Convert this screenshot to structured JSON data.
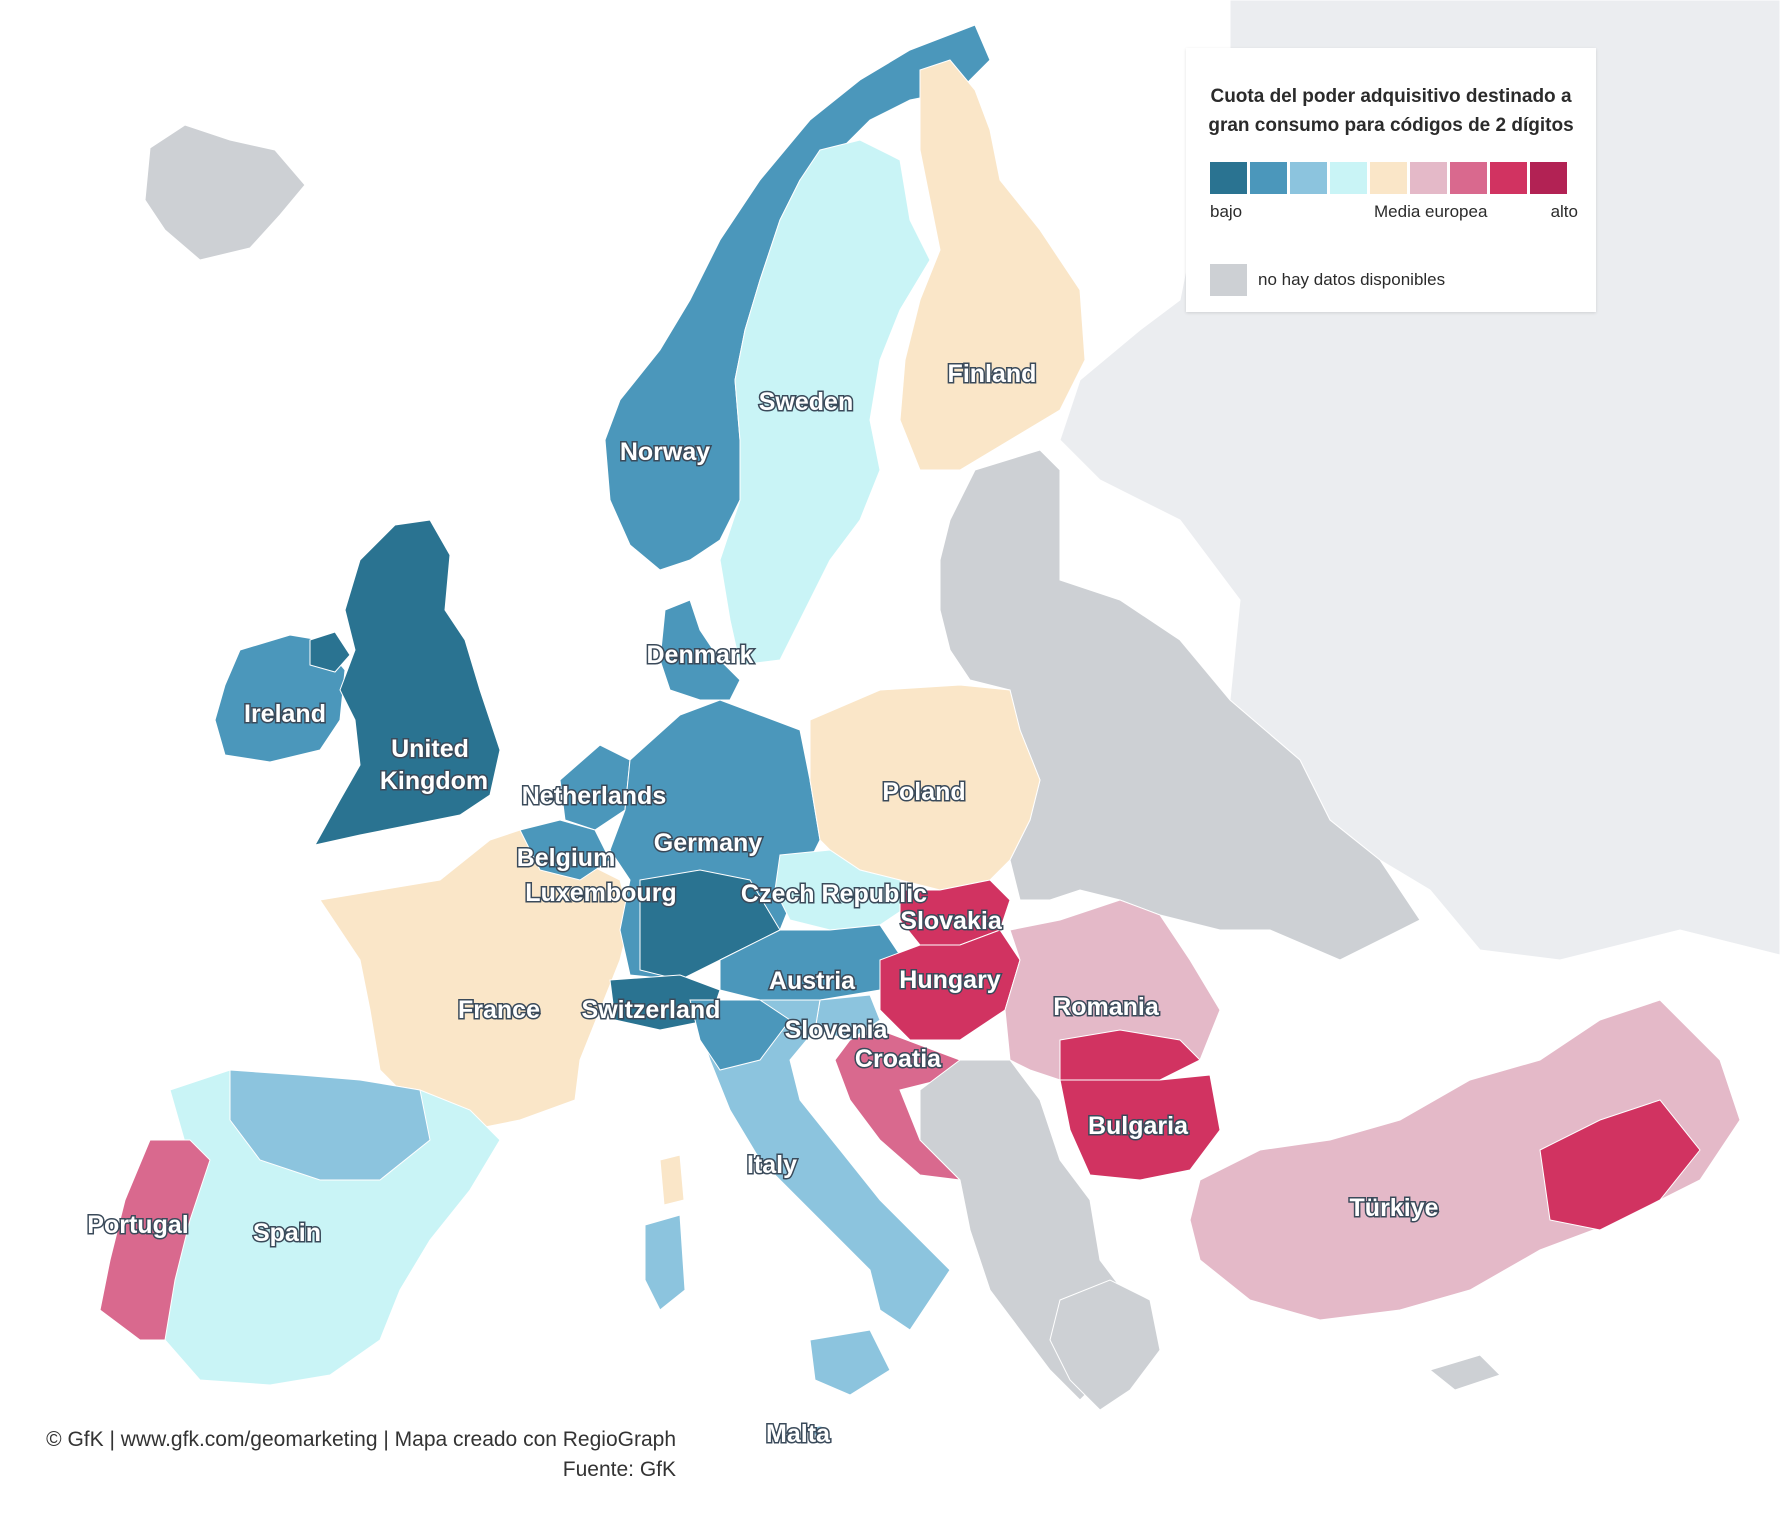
{
  "legend": {
    "title_line1": "Cuota del poder adquisitivo destinado a",
    "title_line2": "gran consumo para códigos de 2 dígitos",
    "scale_colors": [
      "#2a7391",
      "#4b97bb",
      "#8cc4de",
      "#c9f4f6",
      "#fae6c8",
      "#e4b9c8",
      "#d9698e",
      "#d13361",
      "#b22254"
    ],
    "label_low": "bajo",
    "label_mid": "Media europea",
    "label_high": "alto",
    "no_data_label": "no hay datos disponibles",
    "no_data_color": "#cdd0d4"
  },
  "credits": {
    "line1": "© GfK | www.gfk.com/geomarketing | Mapa creado con RegioGraph",
    "line2": "Fuente: GfK"
  },
  "map": {
    "water_color": "#ffffff",
    "outside_color": "#ebedf0",
    "countries": [
      {
        "name": "Norway",
        "label": "Norway",
        "class_index": 1
      },
      {
        "name": "Sweden",
        "label": "Sweden",
        "class_index": 3
      },
      {
        "name": "Finland",
        "label": "Finland",
        "class_index": 4
      },
      {
        "name": "Denmark",
        "label": "Denmark",
        "class_index": 1
      },
      {
        "name": "Ireland",
        "label": "Ireland",
        "class_index": 1
      },
      {
        "name": "United Kingdom",
        "label_lines": [
          "United",
          "Kingdom"
        ],
        "class_index": 0
      },
      {
        "name": "Netherlands",
        "label": "Netherlands",
        "class_index": 1
      },
      {
        "name": "Belgium",
        "label": "Belgium",
        "class_index": 1
      },
      {
        "name": "Luxembourg",
        "label": "Luxembourg",
        "class_index": 1
      },
      {
        "name": "Germany",
        "label": "Germany",
        "class_index": 1
      },
      {
        "name": "Poland",
        "label": "Poland",
        "class_index": 4
      },
      {
        "name": "Czech Republic",
        "label": "Czech Republic",
        "class_index": 3
      },
      {
        "name": "Slovakia",
        "label": "Slovakia",
        "class_index": 7
      },
      {
        "name": "Austria",
        "label": "Austria",
        "class_index": 1
      },
      {
        "name": "Hungary",
        "label": "Hungary",
        "class_index": 7
      },
      {
        "name": "Romania",
        "label": "Romania",
        "class_index": 5
      },
      {
        "name": "Switzerland",
        "label": "Switzerland",
        "class_index": 0
      },
      {
        "name": "France",
        "label": "France",
        "class_index": 4
      },
      {
        "name": "Slovenia",
        "label": "Slovenia",
        "class_index": 2
      },
      {
        "name": "Croatia",
        "label": "Croatia",
        "class_index": 6
      },
      {
        "name": "Bulgaria",
        "label": "Bulgaria",
        "class_index": 7
      },
      {
        "name": "Italy",
        "label": "Italy",
        "class_index": 2
      },
      {
        "name": "Portugal",
        "label": "Portugal",
        "class_index": 6
      },
      {
        "name": "Spain",
        "label": "Spain",
        "class_index": 3
      },
      {
        "name": "Türkiye",
        "label": "Türkiye",
        "class_index": 5
      },
      {
        "name": "Malta",
        "label": "Malta",
        "class_index": 2
      }
    ],
    "no_data_areas": [
      "Iceland",
      "Belarus",
      "Ukraine",
      "Baltic states",
      "Balkans",
      "Greece",
      "Moldova",
      "Cyprus"
    ]
  }
}
